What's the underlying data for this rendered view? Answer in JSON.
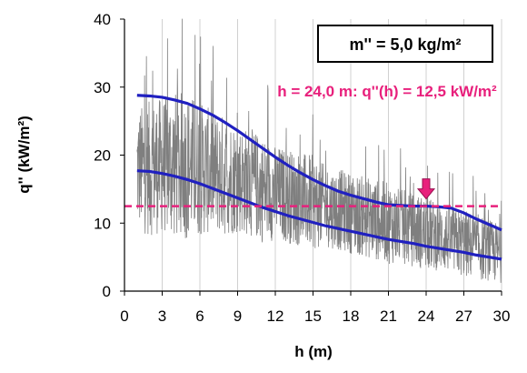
{
  "chart_data": {
    "type": "line",
    "xlabel": "h (m)",
    "ylabel": "q'' (kW/m²)",
    "xlim": [
      0,
      30
    ],
    "ylim": [
      0,
      40
    ],
    "xticks": [
      0,
      3,
      6,
      9,
      12,
      15,
      18,
      21,
      24,
      27,
      30
    ],
    "yticks": [
      0,
      10,
      20,
      30,
      40
    ],
    "grid": "vertical",
    "mass_label": "m'' = 5,0 kg/m²",
    "annotation": "h = 24,0 m: q''(h) = 12,5 kW/m²",
    "reference_level": 12.5,
    "marker_h": 24.0,
    "colors": {
      "noisy": "#7f7f7f",
      "envelope": "#2020c0",
      "reference": "#e8207c",
      "marker": "#e8207c",
      "grid": "#d0d0d0"
    },
    "series": [
      {
        "type": "noisy-line",
        "x": [
          1,
          2,
          3,
          4,
          5,
          6,
          7,
          8,
          9,
          10,
          11,
          12,
          13,
          14,
          15,
          16,
          17,
          18,
          19,
          20,
          21,
          22,
          23,
          24,
          25,
          26,
          27,
          28,
          29,
          30
        ],
        "mean": [
          18,
          18,
          18.5,
          18.5,
          18.5,
          18,
          17.5,
          17,
          16.5,
          16,
          15,
          14.5,
          14,
          13.5,
          13,
          12.5,
          12,
          11.5,
          11,
          10.5,
          10,
          9.5,
          9,
          8.5,
          8,
          7.5,
          7,
          6.5,
          6,
          5.5
        ],
        "amplitude": [
          9,
          10,
          10,
          11,
          11,
          10,
          9,
          9,
          8,
          8,
          8,
          7,
          7,
          7,
          7,
          6,
          6,
          6,
          6,
          6,
          6,
          5.5,
          5.5,
          5.5,
          5,
          5,
          5,
          5,
          4.5,
          4.5
        ]
      },
      {
        "type": "line",
        "x": [
          1,
          2,
          3,
          4,
          5,
          6,
          7,
          8,
          9,
          10,
          11,
          12,
          13,
          14,
          15,
          16,
          17,
          18,
          19,
          20,
          21,
          22,
          23,
          24,
          25,
          26,
          27,
          28,
          29,
          30
        ],
        "values": [
          28.8,
          28.7,
          28.5,
          28.1,
          27.6,
          26.8,
          25.9,
          24.8,
          23.6,
          22.3,
          21.0,
          19.7,
          18.5,
          17.4,
          16.4,
          15.5,
          14.7,
          14.1,
          13.6,
          13.1,
          12.7,
          12.6,
          12.5,
          12.5,
          12.4,
          12.2,
          11.5,
          10.6,
          9.8,
          9.0
        ]
      },
      {
        "type": "line",
        "x": [
          1,
          2,
          3,
          4,
          5,
          6,
          7,
          8,
          9,
          10,
          11,
          12,
          13,
          14,
          15,
          16,
          17,
          18,
          19,
          20,
          21,
          22,
          23,
          24,
          25,
          26,
          27,
          28,
          29,
          30
        ],
        "values": [
          17.7,
          17.6,
          17.3,
          16.9,
          16.4,
          15.8,
          15.1,
          14.4,
          13.7,
          13.0,
          12.3,
          11.7,
          11.1,
          10.6,
          10.1,
          9.6,
          9.2,
          8.8,
          8.4,
          8.0,
          7.6,
          7.3,
          7.0,
          6.6,
          6.3,
          6.0,
          5.7,
          5.3,
          5.0,
          4.7
        ]
      }
    ]
  }
}
